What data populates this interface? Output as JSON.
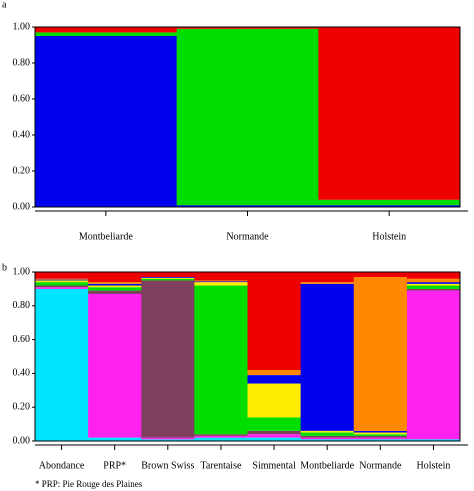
{
  "chart_data": [
    {
      "type": "bar",
      "stacked": true,
      "panel_label": "a",
      "categories": [
        "Montbeliarde",
        "Normande",
        "Holstein"
      ],
      "series": [
        {
          "color": "#0000ee",
          "values": [
            0.95,
            0.01,
            0.01
          ]
        },
        {
          "color": "#00dd00",
          "values": [
            0.02,
            0.98,
            0.03
          ]
        },
        {
          "color": "#ee0000",
          "values": [
            0.03,
            0.01,
            0.96
          ]
        }
      ],
      "ylim": [
        0,
        1
      ],
      "yticks": [
        {
          "value": 0,
          "label": "0.00"
        },
        {
          "value": 0.2,
          "label": "0.20"
        },
        {
          "value": 0.4,
          "label": "0.40"
        },
        {
          "value": 0.6,
          "label": "0.60"
        },
        {
          "value": 0.8,
          "label": "0.80"
        },
        {
          "value": 1,
          "label": "1.00"
        }
      ]
    },
    {
      "type": "bar",
      "stacked": true,
      "panel_label": "b",
      "categories": [
        "Abondance",
        "PRP*",
        "Brown Swiss",
        "Tarentaise",
        "Simmental",
        "Montbeliarde",
        "Normande",
        "Holstein"
      ],
      "series": [
        {
          "color": "#00e5ff",
          "values": [
            0.9,
            0.02,
            0.01,
            0.02,
            0.02,
            0.01,
            0.01,
            0.01
          ]
        },
        {
          "color": "#ff22ee",
          "values": [
            0.01,
            0.85,
            0.01,
            0.01,
            0.02,
            0.01,
            0.01,
            0.88
          ]
        },
        {
          "color": "#7f3f5f",
          "values": [
            0.01,
            0.02,
            0.93,
            0.01,
            0.02,
            0.01,
            0.01,
            0.01
          ]
        },
        {
          "color": "#00dd00",
          "values": [
            0.02,
            0.02,
            0.01,
            0.88,
            0.08,
            0.02,
            0.01,
            0.02
          ]
        },
        {
          "color": "#ffee00",
          "values": [
            0.01,
            0.01,
            0.005,
            0.02,
            0.2,
            0.01,
            0.01,
            0.01
          ]
        },
        {
          "color": "#0000ee",
          "values": [
            0.005,
            0.01,
            0.005,
            0.005,
            0.05,
            0.87,
            0.01,
            0.01
          ]
        },
        {
          "color": "#ff8800",
          "values": [
            0.005,
            0.01,
            0,
            0.005,
            0.03,
            0.01,
            0.91,
            0.02
          ]
        },
        {
          "color": "#ee0000",
          "values": [
            0.04,
            0.06,
            0.03,
            0.05,
            0.58,
            0.06,
            0.03,
            0.04
          ]
        }
      ],
      "ylim": [
        0,
        1
      ],
      "yticks": [
        {
          "value": 0,
          "label": "0.00"
        },
        {
          "value": 0.2,
          "label": "0.20"
        },
        {
          "value": 0.4,
          "label": "0.40"
        },
        {
          "value": 0.6,
          "label": "0.60"
        },
        {
          "value": 0.8,
          "label": "0.80"
        },
        {
          "value": 1,
          "label": "1.00"
        }
      ],
      "footnote": "* PRP: Pie Rouge des Plaines"
    }
  ]
}
